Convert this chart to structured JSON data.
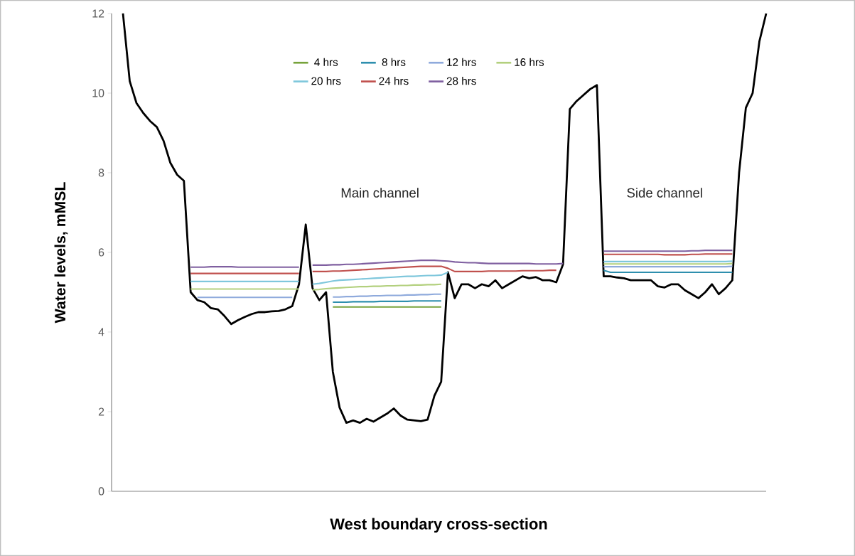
{
  "chart_data": {
    "type": "line",
    "xlabel": "West boundary cross-section",
    "ylabel": "Water levels, mMSL",
    "annotations": [
      "Main channel",
      "Side channel"
    ],
    "categories": [
      null,
      null,
      null,
      null,
      null,
      null,
      null,
      null,
      null,
      null,
      null,
      null,
      null,
      null,
      null,
      null,
      null,
      null,
      null,
      null,
      null,
      null,
      null,
      null,
      null,
      null,
      null,
      null,
      null,
      null,
      null,
      null,
      null,
      null,
      null,
      null,
      null,
      null,
      null,
      null,
      null,
      null,
      null,
      null,
      null,
      null,
      null,
      null,
      null,
      null,
      null,
      null,
      null,
      null,
      null,
      null,
      null,
      null,
      null,
      null,
      null,
      null,
      null,
      null,
      null,
      null,
      null,
      null,
      null,
      null,
      null,
      null,
      null,
      null,
      null,
      null,
      null,
      null,
      null,
      null,
      null,
      null,
      null,
      null,
      null,
      null,
      null,
      null,
      null,
      null,
      null,
      null,
      null,
      null,
      null,
      null
    ],
    "ylim": [
      0,
      12
    ],
    "yticks": [
      0,
      2,
      4,
      6,
      8,
      10,
      12
    ],
    "tick_labels": "y",
    "legend": "top",
    "series": [
      {
        "type": "line",
        "color": "#000000",
        "values": [
          12,
          10.3,
          9.75,
          9.5,
          9.3,
          9.15,
          8.8,
          8.25,
          7.95,
          7.8,
          5.0,
          4.8,
          4.75,
          4.6,
          4.57,
          4.4,
          4.2,
          4.3,
          4.38,
          4.45,
          4.5,
          4.5,
          4.52,
          4.53,
          4.57,
          4.65,
          5.2,
          6.7,
          5.1,
          4.8,
          5.0,
          3.0,
          2.1,
          1.72,
          1.78,
          1.72,
          1.82,
          1.75,
          1.85,
          1.95,
          2.08,
          1.9,
          1.8,
          1.78,
          1.76,
          1.8,
          2.4,
          2.75,
          5.5,
          4.85,
          5.2,
          5.2,
          5.1,
          5.2,
          5.15,
          5.3,
          5.1,
          5.2,
          5.3,
          5.4,
          5.35,
          5.38,
          5.3,
          5.3,
          5.25,
          5.7,
          9.6,
          9.8,
          9.95,
          10.1,
          10.2,
          5.4,
          5.4,
          5.37,
          5.35,
          5.3,
          5.3,
          5.3,
          5.3,
          5.15,
          5.12,
          5.2,
          5.2,
          5.05,
          4.95,
          4.85,
          5.0,
          5.2,
          4.95,
          5.1,
          5.3,
          8.0,
          9.63,
          10.0,
          11.3,
          12
        ]
      },
      {
        "name": "4 hrs",
        "color": "#77a33c",
        "values": [
          null,
          null,
          null,
          null,
          null,
          null,
          null,
          null,
          null,
          null,
          null,
          null,
          null,
          null,
          null,
          null,
          null,
          null,
          null,
          null,
          null,
          null,
          null,
          null,
          null,
          null,
          null,
          null,
          null,
          null,
          null,
          4.63,
          4.63,
          4.63,
          4.63,
          4.63,
          4.63,
          4.63,
          4.63,
          4.63,
          4.63,
          4.63,
          4.63,
          4.63,
          4.63,
          4.63,
          4.63,
          4.63,
          null,
          null,
          null,
          null,
          null,
          null,
          null,
          null,
          null,
          null,
          null,
          null,
          null,
          null,
          null,
          null,
          null,
          null,
          null,
          null,
          null,
          null,
          null,
          null,
          null,
          null,
          null,
          null,
          null,
          null,
          null,
          null,
          null,
          null,
          null,
          null,
          null,
          null,
          null,
          null,
          null,
          null,
          null,
          null,
          null,
          null,
          null,
          null
        ]
      },
      {
        "name": "8 hrs",
        "color": "#2e8fae",
        "values": [
          null,
          null,
          null,
          null,
          null,
          null,
          null,
          null,
          null,
          null,
          null,
          null,
          null,
          null,
          null,
          null,
          null,
          null,
          null,
          null,
          null,
          null,
          null,
          null,
          null,
          null,
          null,
          null,
          null,
          null,
          null,
          4.75,
          4.75,
          4.75,
          4.76,
          4.76,
          4.76,
          4.76,
          4.77,
          4.77,
          4.77,
          4.77,
          4.77,
          4.78,
          4.78,
          4.78,
          4.78,
          4.78,
          null,
          null,
          null,
          null,
          null,
          null,
          null,
          null,
          null,
          null,
          null,
          null,
          null,
          null,
          null,
          null,
          null,
          null,
          null,
          null,
          null,
          null,
          null,
          5.55,
          5.5,
          5.5,
          5.5,
          5.5,
          5.5,
          5.5,
          5.5,
          5.5,
          5.5,
          5.5,
          5.5,
          5.5,
          5.5,
          5.5,
          5.5,
          5.5,
          5.5,
          5.5,
          5.5,
          null,
          null,
          null,
          null,
          null
        ]
      },
      {
        "name": "12 hrs",
        "color": "#8faadc",
        "values": [
          null,
          null,
          null,
          null,
          null,
          null,
          null,
          null,
          null,
          null,
          null,
          4.87,
          4.87,
          4.87,
          4.87,
          4.87,
          4.87,
          4.87,
          4.87,
          4.87,
          4.87,
          4.87,
          4.87,
          4.87,
          4.87,
          4.87,
          null,
          null,
          null,
          null,
          null,
          4.88,
          4.88,
          4.89,
          4.89,
          4.9,
          4.9,
          4.91,
          4.91,
          4.92,
          4.92,
          4.92,
          4.93,
          4.93,
          4.94,
          4.94,
          4.95,
          4.95,
          null,
          null,
          null,
          null,
          null,
          null,
          null,
          null,
          null,
          null,
          null,
          null,
          null,
          null,
          null,
          null,
          null,
          null,
          null,
          null,
          null,
          null,
          null,
          5.64,
          5.64,
          5.64,
          5.64,
          5.64,
          5.64,
          5.64,
          5.64,
          5.64,
          5.64,
          5.64,
          5.64,
          5.64,
          5.64,
          5.64,
          5.64,
          5.64,
          5.64,
          5.64,
          5.65,
          null,
          null,
          null,
          null,
          null
        ]
      },
      {
        "name": "16 hrs",
        "color": "#b3d07e",
        "values": [
          null,
          null,
          null,
          null,
          null,
          null,
          null,
          null,
          null,
          null,
          5.08,
          5.08,
          5.08,
          5.08,
          5.08,
          5.08,
          5.08,
          5.08,
          5.08,
          5.08,
          5.08,
          5.08,
          5.08,
          5.08,
          5.08,
          5.08,
          5.08,
          null,
          5.06,
          5.07,
          5.09,
          5.1,
          5.11,
          5.12,
          5.13,
          5.14,
          5.14,
          5.15,
          5.15,
          5.16,
          5.16,
          5.17,
          5.17,
          5.18,
          5.18,
          5.19,
          5.19,
          5.2,
          null,
          null,
          null,
          null,
          null,
          null,
          null,
          null,
          null,
          null,
          null,
          null,
          null,
          null,
          null,
          null,
          null,
          null,
          null,
          null,
          null,
          null,
          null,
          5.71,
          5.71,
          5.71,
          5.71,
          5.71,
          5.71,
          5.71,
          5.71,
          5.71,
          5.71,
          5.71,
          5.71,
          5.71,
          5.71,
          5.71,
          5.71,
          5.71,
          5.71,
          5.71,
          5.72,
          null,
          null,
          null,
          null,
          null
        ]
      },
      {
        "name": "20 hrs",
        "color": "#7fc7dc",
        "values": [
          null,
          null,
          null,
          null,
          null,
          null,
          null,
          null,
          null,
          null,
          5.27,
          5.27,
          5.27,
          5.27,
          5.27,
          5.27,
          5.27,
          5.27,
          5.27,
          5.27,
          5.27,
          5.27,
          5.27,
          5.27,
          5.27,
          5.27,
          5.27,
          null,
          5.2,
          5.22,
          5.25,
          5.28,
          5.3,
          5.31,
          5.32,
          5.33,
          5.34,
          5.35,
          5.36,
          5.37,
          5.38,
          5.39,
          5.4,
          5.4,
          5.41,
          5.42,
          5.42,
          5.43,
          5.5,
          null,
          null,
          null,
          null,
          null,
          null,
          null,
          null,
          null,
          null,
          null,
          null,
          null,
          null,
          null,
          null,
          null,
          null,
          null,
          null,
          null,
          null,
          5.77,
          5.77,
          5.77,
          5.77,
          5.77,
          5.77,
          5.77,
          5.77,
          5.77,
          5.77,
          5.77,
          5.77,
          5.77,
          5.77,
          5.77,
          5.77,
          5.77,
          5.77,
          5.77,
          5.78,
          null,
          null,
          null,
          null,
          null
        ]
      },
      {
        "name": "24 hrs",
        "color": "#c0504d",
        "values": [
          null,
          null,
          null,
          null,
          null,
          null,
          null,
          null,
          null,
          null,
          5.47,
          5.47,
          5.47,
          5.47,
          5.47,
          5.47,
          5.47,
          5.47,
          5.47,
          5.47,
          5.47,
          5.47,
          5.47,
          5.47,
          5.47,
          5.47,
          5.47,
          null,
          5.52,
          5.52,
          5.52,
          5.53,
          5.53,
          5.54,
          5.55,
          5.56,
          5.57,
          5.58,
          5.59,
          5.6,
          5.61,
          5.62,
          5.63,
          5.64,
          5.65,
          5.65,
          5.65,
          5.65,
          5.6,
          5.52,
          5.52,
          5.52,
          5.52,
          5.52,
          5.53,
          5.53,
          5.53,
          5.53,
          5.53,
          5.54,
          5.54,
          5.54,
          5.54,
          5.55,
          5.55,
          null,
          null,
          null,
          null,
          null,
          null,
          5.95,
          5.95,
          5.95,
          5.95,
          5.95,
          5.95,
          5.95,
          5.95,
          5.95,
          5.94,
          5.94,
          5.94,
          5.94,
          5.95,
          5.95,
          5.96,
          5.96,
          5.96,
          5.96,
          5.96,
          null,
          null,
          null,
          null,
          null
        ]
      },
      {
        "name": "28 hrs",
        "color": "#7f5fa0",
        "values": [
          null,
          null,
          null,
          null,
          null,
          null,
          null,
          null,
          null,
          null,
          5.63,
          5.63,
          5.63,
          5.64,
          5.64,
          5.64,
          5.64,
          5.63,
          5.63,
          5.63,
          5.63,
          5.63,
          5.63,
          5.63,
          5.63,
          5.63,
          5.63,
          null,
          5.68,
          5.68,
          5.68,
          5.69,
          5.69,
          5.7,
          5.7,
          5.71,
          5.72,
          5.73,
          5.74,
          5.75,
          5.76,
          5.77,
          5.78,
          5.79,
          5.8,
          5.8,
          5.8,
          5.79,
          5.78,
          5.76,
          5.75,
          5.74,
          5.74,
          5.73,
          5.72,
          5.72,
          5.72,
          5.72,
          5.72,
          5.72,
          5.72,
          5.71,
          5.71,
          5.71,
          5.71,
          5.72,
          null,
          null,
          null,
          null,
          null,
          6.03,
          6.03,
          6.03,
          6.03,
          6.03,
          6.03,
          6.03,
          6.03,
          6.03,
          6.03,
          6.03,
          6.03,
          6.03,
          6.04,
          6.04,
          6.05,
          6.05,
          6.05,
          6.05,
          6.05,
          null,
          null,
          null,
          null,
          null
        ]
      }
    ]
  }
}
